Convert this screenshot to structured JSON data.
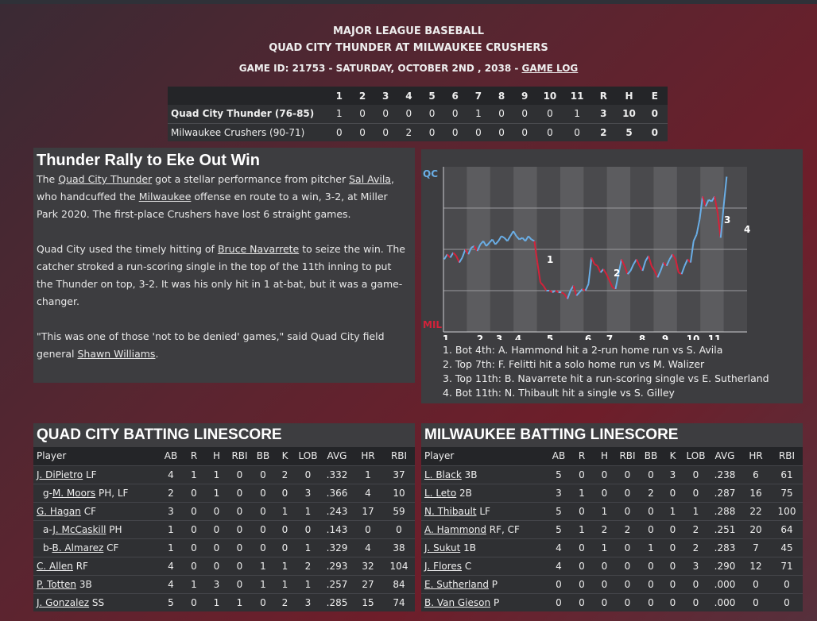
{
  "header": {
    "league": "MAJOR LEAGUE BASEBALL",
    "matchup": "QUAD CITY THUNDER AT MILWAUKEE CRUSHERS",
    "game_info": "GAME ID: 21753 - SATURDAY, OCTOBER 2ND , 2038 - ",
    "game_log_link": "GAME LOG"
  },
  "linescore": {
    "innings": [
      "1",
      "2",
      "3",
      "4",
      "5",
      "6",
      "7",
      "8",
      "9",
      "10",
      "11"
    ],
    "totals_headers": [
      "R",
      "H",
      "E"
    ],
    "teams": [
      {
        "name": "Quad City Thunder (76-85)",
        "innings": [
          "1",
          "0",
          "0",
          "0",
          "0",
          "0",
          "1",
          "0",
          "0",
          "0",
          "1"
        ],
        "R": "3",
        "H": "10",
        "E": "0"
      },
      {
        "name": "Milwaukee Crushers (90-71)",
        "innings": [
          "0",
          "0",
          "0",
          "2",
          "0",
          "0",
          "0",
          "0",
          "0",
          "0",
          "0"
        ],
        "R": "2",
        "H": "5",
        "E": "0"
      }
    ]
  },
  "recap": {
    "headline": "Thunder Rally to Eke Out Win",
    "p1": {
      "t1": "The ",
      "l1": "Quad City Thunder",
      "t2": " got a stellar performance from pitcher ",
      "l2": "Sal Avila",
      "t3": ", who handcuffed the ",
      "l3": "Milwaukee",
      "t4": " offense en route to a win, 3-2, at Miller Park 2020. The first-place Crushers have lost 6 straight games."
    },
    "p2": {
      "t1": "Quad City used the timely hitting of ",
      "l1": "Bruce Navarrete",
      "t2": " to seize the win. The catcher stroked a run-scoring single in the top of the 11th inning to put the Thunder on top, 3-2. It was his only hit in 1 at-bat, but it was a game-changer."
    },
    "p3": {
      "t1": "\"This was one of those 'not to be denied' games,\" said Quad City field general ",
      "l1": "Shawn Williams",
      "t2": "."
    }
  },
  "win_prob": {
    "top_label": "QC",
    "bottom_label": "MIL",
    "inning_labels": [
      "1",
      "2",
      "3",
      "4",
      "5",
      "6",
      "7",
      "8",
      "9",
      "10",
      "11"
    ],
    "markers": [
      "1",
      "2",
      "3",
      "4"
    ],
    "colors": {
      "qc": "#6aaee6",
      "mil": "#d4223a"
    },
    "events": [
      "1. Bot 4th: A. Hammond hit a 2-run home run vs S. Avila",
      "2. Top 7th: F. Felitti hit a solo home run vs M. Walizer",
      "3. Top 11th: B. Navarrete hit a run-scoring single vs E. Sutherland",
      "4. Bot 11th: N. Thibault hit a single vs S. Gilley"
    ]
  },
  "batting_headers": [
    "Player",
    "AB",
    "R",
    "H",
    "RBI",
    "BB",
    "K",
    "LOB",
    "AVG",
    "HR",
    "RBI"
  ],
  "qc_batting": {
    "title": "QUAD CITY BATTING LINESCORE",
    "rows": [
      {
        "prefix": "",
        "name": "J. DiPietro",
        "pos": " LF",
        "stats": [
          "4",
          "1",
          "1",
          "0",
          "0",
          "2",
          "0",
          ".332",
          "1",
          "37"
        ]
      },
      {
        "prefix": "g-",
        "name": "M. Moors",
        "pos": " PH, LF",
        "stats": [
          "2",
          "0",
          "1",
          "0",
          "0",
          "0",
          "3",
          ".366",
          "4",
          "10"
        ]
      },
      {
        "prefix": "",
        "name": "G. Hagan",
        "pos": " CF",
        "stats": [
          "3",
          "0",
          "0",
          "0",
          "0",
          "1",
          "1",
          ".243",
          "17",
          "59"
        ]
      },
      {
        "prefix": "a-",
        "name": "J. McCaskill",
        "pos": " PH",
        "stats": [
          "1",
          "0",
          "0",
          "0",
          "0",
          "0",
          "0",
          ".143",
          "0",
          "0"
        ]
      },
      {
        "prefix": "b-",
        "name": "B. Almarez",
        "pos": " CF",
        "stats": [
          "1",
          "0",
          "0",
          "0",
          "0",
          "0",
          "1",
          ".329",
          "4",
          "38"
        ]
      },
      {
        "prefix": "",
        "name": "C. Allen",
        "pos": " RF",
        "stats": [
          "4",
          "0",
          "0",
          "0",
          "1",
          "1",
          "2",
          ".293",
          "32",
          "104"
        ]
      },
      {
        "prefix": "",
        "name": "P. Totten",
        "pos": " 3B",
        "stats": [
          "4",
          "1",
          "3",
          "0",
          "1",
          "1",
          "1",
          ".257",
          "27",
          "84"
        ]
      },
      {
        "prefix": "",
        "name": "J. Gonzalez",
        "pos": " SS",
        "stats": [
          "5",
          "0",
          "1",
          "1",
          "0",
          "2",
          "3",
          ".285",
          "15",
          "74"
        ]
      }
    ]
  },
  "mil_batting": {
    "title": "MILWAUKEE BATTING LINESCORE",
    "rows": [
      {
        "prefix": "",
        "name": "L. Black",
        "pos": " 3B",
        "stats": [
          "5",
          "0",
          "0",
          "0",
          "0",
          "3",
          "0",
          ".238",
          "6",
          "61"
        ]
      },
      {
        "prefix": "",
        "name": "L. Leto",
        "pos": " 2B",
        "stats": [
          "3",
          "1",
          "0",
          "0",
          "2",
          "0",
          "0",
          ".287",
          "16",
          "75"
        ]
      },
      {
        "prefix": "",
        "name": "N. Thibault",
        "pos": " LF",
        "stats": [
          "5",
          "0",
          "1",
          "0",
          "0",
          "1",
          "1",
          ".288",
          "22",
          "100"
        ]
      },
      {
        "prefix": "",
        "name": "A. Hammond",
        "pos": " RF, CF",
        "stats": [
          "5",
          "1",
          "2",
          "2",
          "0",
          "0",
          "2",
          ".251",
          "20",
          "64"
        ]
      },
      {
        "prefix": "",
        "name": "J. Sukut",
        "pos": " 1B",
        "stats": [
          "4",
          "0",
          "1",
          "0",
          "1",
          "0",
          "2",
          ".283",
          "7",
          "45"
        ]
      },
      {
        "prefix": "",
        "name": "J. Flores",
        "pos": " C",
        "stats": [
          "4",
          "0",
          "0",
          "0",
          "0",
          "0",
          "3",
          ".290",
          "12",
          "71"
        ]
      },
      {
        "prefix": "",
        "name": "E. Sutherland",
        "pos": " P",
        "stats": [
          "0",
          "0",
          "0",
          "0",
          "0",
          "0",
          "0",
          ".000",
          "0",
          "0"
        ]
      },
      {
        "prefix": "",
        "name": "B. Van Gieson",
        "pos": " P",
        "stats": [
          "0",
          "0",
          "0",
          "0",
          "0",
          "0",
          "0",
          ".000",
          "0",
          "0"
        ]
      }
    ]
  }
}
